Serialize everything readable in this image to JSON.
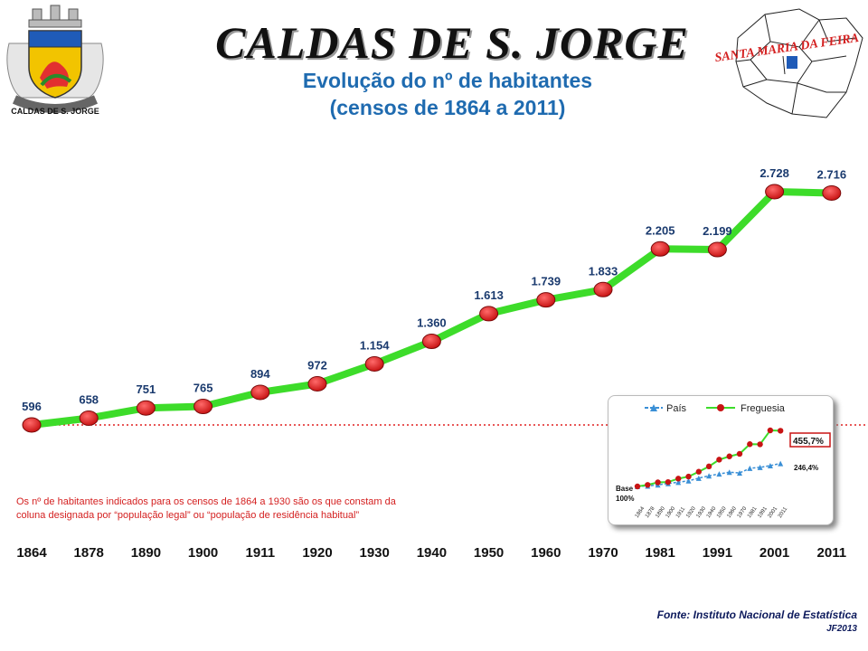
{
  "header": {
    "title": "CALDAS DE S. JORGE",
    "subtitle_line1": "Evolução do nº de habitantes",
    "subtitle_line2": "(censos de 1864 a 2011)",
    "crest_caption": "CALDAS DE S. JORGE",
    "map_label": "SANTA MARIA DA FEIRA"
  },
  "colors": {
    "line": "#3ddc2a",
    "marker": "#c81414",
    "label": "#1a3a6e",
    "base_dotted": "#e02020",
    "title_blue": "#1f6bb0",
    "pais": "#3a8fd6"
  },
  "chart_data": {
    "type": "line",
    "categories": [
      "1864",
      "1878",
      "1890",
      "1900",
      "1911",
      "1920",
      "1930",
      "1940",
      "1950",
      "1960",
      "1970",
      "1981",
      "1991",
      "2001",
      "2011"
    ],
    "values": [
      596,
      658,
      751,
      765,
      894,
      972,
      1154,
      1360,
      1613,
      1739,
      1833,
      2205,
      2199,
      2728,
      2716
    ],
    "value_labels": [
      "596",
      "658",
      "751",
      "765",
      "894",
      "972",
      "1.154",
      "1.360",
      "1.613",
      "1.739",
      "1.833",
      "2.205",
      "2.199",
      "2.728",
      "2.716"
    ],
    "baseline_value": 596,
    "legend": "none",
    "grid": false
  },
  "inset_chart": {
    "type": "line",
    "categories": [
      "1864",
      "1878",
      "1890",
      "1900",
      "1911",
      "1920",
      "1930",
      "1940",
      "1950",
      "1960",
      "1970",
      "1981",
      "1991",
      "2001",
      "2011"
    ],
    "series": [
      {
        "name": "País",
        "values": [
          100,
          103,
          110,
          119,
          127,
          136,
          153,
          168,
          180,
          191,
          186,
          216,
          222,
          233,
          246.4
        ]
      },
      {
        "name": "Freguesia",
        "values": [
          100,
          110,
          126,
          128,
          150,
          163,
          194,
          228,
          271,
          292,
          308,
          370,
          369,
          458,
          455.7
        ]
      }
    ],
    "base_label_line1": "Base",
    "base_label_line2": "100%",
    "end_label_pais": "246,4%",
    "end_label_freguesia": "455,7%",
    "legend": "top"
  },
  "note": "Os nº de habitantes indicados para os censos de 1864 a 1930 são os que constam da coluna designada por “população legal” ou “população de residência habitual”",
  "source": "Fonte: Instituto Nacional de Estatística",
  "author": "JF2013"
}
